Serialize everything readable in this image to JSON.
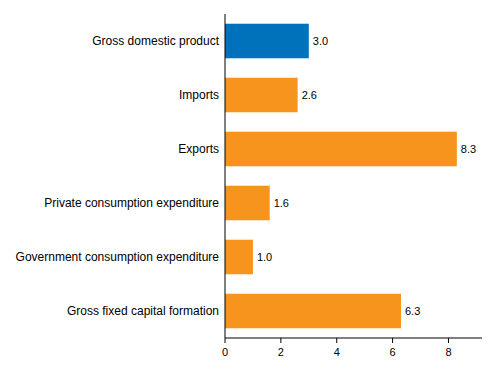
{
  "chart_data": {
    "type": "bar",
    "orientation": "horizontal",
    "categories": [
      "Gross domestic product",
      "Imports",
      "Exports",
      "Private consumption expenditure",
      "Government consumption expenditure",
      "Gross fixed capital formation"
    ],
    "values": [
      3.0,
      2.6,
      8.3,
      1.6,
      1.0,
      6.3
    ],
    "value_labels": [
      "3.0",
      "2.6",
      "8.3",
      "1.6",
      "1.0",
      "6.3"
    ],
    "colors": [
      "#0072bc",
      "#f7941d",
      "#f7941d",
      "#f7941d",
      "#f7941d",
      "#f7941d"
    ],
    "data_labels": true,
    "grid": false,
    "xlim": [
      0,
      9.2
    ],
    "xticks": [
      0,
      2,
      4,
      6,
      8
    ]
  }
}
